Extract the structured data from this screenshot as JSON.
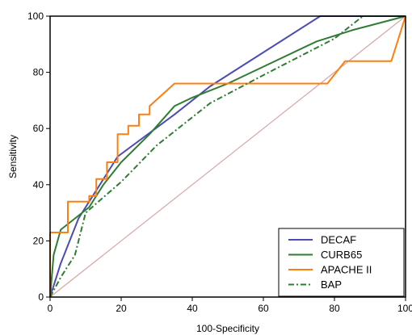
{
  "chart_data": {
    "type": "line",
    "title": "",
    "xlabel": "100-Specificity",
    "ylabel": "Sensitivity",
    "xlim": [
      0,
      100
    ],
    "ylim": [
      0,
      100
    ],
    "x_ticks": [
      0,
      20,
      40,
      60,
      80,
      100
    ],
    "y_ticks": [
      0,
      20,
      40,
      60,
      80,
      100
    ],
    "grid": false,
    "legend": "bottom-right",
    "reference_line": {
      "from": [
        0,
        0
      ],
      "to": [
        100,
        100
      ],
      "color": "#d9a6a6"
    },
    "series": [
      {
        "name": "DECAF",
        "color": "#4b4bb5",
        "style": "solid",
        "points": [
          [
            0,
            0
          ],
          [
            3,
            12
          ],
          [
            8,
            28
          ],
          [
            19,
            50
          ],
          [
            35,
            65
          ],
          [
            45,
            75
          ],
          [
            76,
            100
          ],
          [
            100,
            100
          ]
        ]
      },
      {
        "name": "CURB65",
        "color": "#2e7d32",
        "style": "solid",
        "points": [
          [
            0,
            0
          ],
          [
            1,
            15
          ],
          [
            3,
            24
          ],
          [
            7,
            28
          ],
          [
            11,
            32
          ],
          [
            15,
            40
          ],
          [
            20,
            48
          ],
          [
            28,
            58
          ],
          [
            35,
            68
          ],
          [
            40,
            71
          ],
          [
            50,
            76
          ],
          [
            60,
            82
          ],
          [
            75,
            91
          ],
          [
            85,
            95
          ],
          [
            100,
            100
          ]
        ]
      },
      {
        "name": "APACHE II",
        "color": "#ff7f0e",
        "style": "solid",
        "points": [
          [
            0,
            0
          ],
          [
            0,
            23
          ],
          [
            5,
            23
          ],
          [
            5,
            34
          ],
          [
            11,
            34
          ],
          [
            11,
            36
          ],
          [
            13,
            36
          ],
          [
            13,
            42
          ],
          [
            16,
            42
          ],
          [
            16,
            48
          ],
          [
            19,
            48
          ],
          [
            19,
            58
          ],
          [
            22,
            58
          ],
          [
            22,
            61
          ],
          [
            25,
            61
          ],
          [
            25,
            65
          ],
          [
            28,
            65
          ],
          [
            28,
            68
          ],
          [
            35,
            76
          ],
          [
            78,
            76
          ],
          [
            83,
            84
          ],
          [
            96,
            84
          ],
          [
            100,
            100
          ]
        ]
      },
      {
        "name": "BAP",
        "color": "#2e7d32",
        "style": "dashdot",
        "points": [
          [
            0,
            0
          ],
          [
            3,
            7
          ],
          [
            7,
            15
          ],
          [
            10,
            30
          ],
          [
            20,
            41
          ],
          [
            30,
            54
          ],
          [
            40,
            64
          ],
          [
            45,
            69
          ],
          [
            60,
            79
          ],
          [
            80,
            92
          ],
          [
            88,
            100
          ],
          [
            100,
            100
          ]
        ]
      }
    ]
  }
}
